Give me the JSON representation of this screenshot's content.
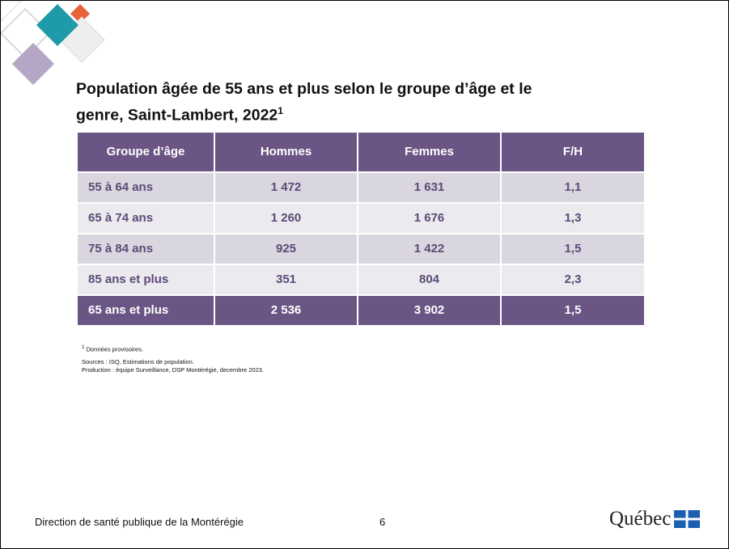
{
  "header": {
    "title_lines": [
      "Population âgée de 55 ans et plus selon le groupe d’âge et le",
      "genre, Saint-Lambert, 2022"
    ],
    "title_note": "1"
  },
  "table": {
    "columns": [
      "Groupe d’âge",
      "Hommes",
      "Femmes",
      "F/H"
    ],
    "rows": [
      [
        "55 à 64 ans",
        "1 472",
        "1 631",
        "1,1"
      ],
      [
        "65 à 74 ans",
        "1 260",
        "1 676",
        "1,3"
      ],
      [
        "75 à 84 ans",
        "925",
        "1 422",
        "1,5"
      ],
      [
        "85 ans et plus",
        "351",
        "804",
        "2,3"
      ],
      [
        "65 ans et plus",
        "2 536",
        "3 902",
        "1,5"
      ]
    ]
  },
  "notes": {
    "footnote_mark": "1",
    "footnote": "Données provisoires.",
    "sources": "Sources : ISQ, Estimations de population.",
    "production": "Production : équipe Surveillance, DSP Montérégie, decembre 2023."
  },
  "footer": {
    "organization": "Direction de santé publique de la Montérégie",
    "page": "6",
    "logo": "Québec"
  }
}
